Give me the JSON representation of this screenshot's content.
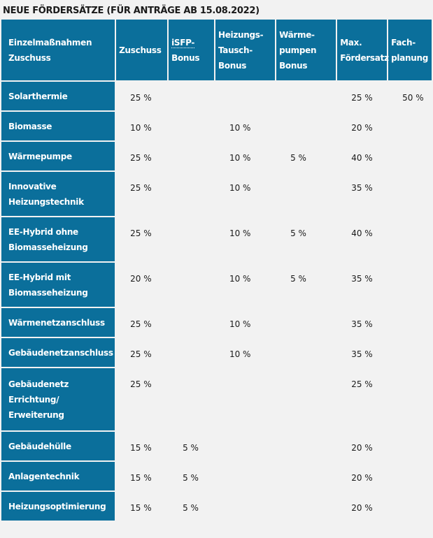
{
  "title": "NEUE FÖRDERSÄTZE (FÜR ANTRÄGE AB 15.08.2022)",
  "headers": [
    "Einzelmaßnahmen Zuschuss",
    "Zuschuss",
    "iSFP-Bonus",
    "Heizungs-Tausch-Bonus",
    "Wärme-pumpen Bonus",
    "Max. Fördersatz",
    "Fach-planung"
  ],
  "header_lines": [
    [
      "Einzelmaßnahmen",
      "Zuschuss"
    ],
    [
      "Zuschuss"
    ],
    [
      "iSFP-",
      "Bonus"
    ],
    [
      "Heizungs-",
      "Tausch-",
      "Bonus"
    ],
    [
      "Wärme-",
      "pumpen",
      "Bonus"
    ],
    [
      "Max.",
      "Fördersatz"
    ],
    [
      "Fach-",
      "planung"
    ]
  ],
  "rows": [
    {
      "name": "Solarthermie",
      "cells": [
        "25 %",
        "",
        "",
        "",
        "25 %",
        "50 %"
      ]
    },
    {
      "name": "Biomasse",
      "cells": [
        "10 %",
        "",
        "10 %",
        "",
        "20 %",
        ""
      ]
    },
    {
      "name": "Wärmepumpe",
      "cells": [
        "25 %",
        "",
        "10 %",
        "5 %",
        "40 %",
        ""
      ]
    },
    {
      "name": "Innovative Heizungstechnik",
      "cells": [
        "25 %",
        "",
        "10 %",
        "",
        "35 %",
        ""
      ]
    },
    {
      "name": "EE-Hybrid ohne Biomasseheizung",
      "cells": [
        "25 %",
        "",
        "10 %",
        "5 %",
        "40 %",
        ""
      ]
    },
    {
      "name": "EE-Hybrid mit Biomasseheizung",
      "cells": [
        "20 %",
        "",
        "10 %",
        "5 %",
        "35 %",
        ""
      ]
    },
    {
      "name": "Wärmenetzanschluss",
      "cells": [
        "25 %",
        "",
        "10 %",
        "",
        "35 %",
        ""
      ]
    },
    {
      "name": "Gebäudenetzanschluss",
      "cells": [
        "25 %",
        "",
        "10 %",
        "",
        "35 %",
        ""
      ]
    },
    {
      "name": "Gebäudenetz Errichtung/ Erweiterung",
      "cells": [
        "25 %",
        "",
        "",
        "",
        "25 %",
        ""
      ]
    },
    {
      "name": "Gebäudehülle",
      "cells": [
        "15 %",
        "5 %",
        "",
        "",
        "20 %",
        ""
      ]
    },
    {
      "name": "Anlagentechnik",
      "cells": [
        "15 %",
        "5 %",
        "",
        "",
        "20 %",
        ""
      ]
    },
    {
      "name": "Heizungsoptimierung",
      "cells": [
        "15 %",
        "5 %",
        "",
        "",
        "20 %",
        ""
      ]
    }
  ],
  "colors": {
    "header_bg": "#0b6f9b",
    "page_bg": "#f2f2f2"
  }
}
